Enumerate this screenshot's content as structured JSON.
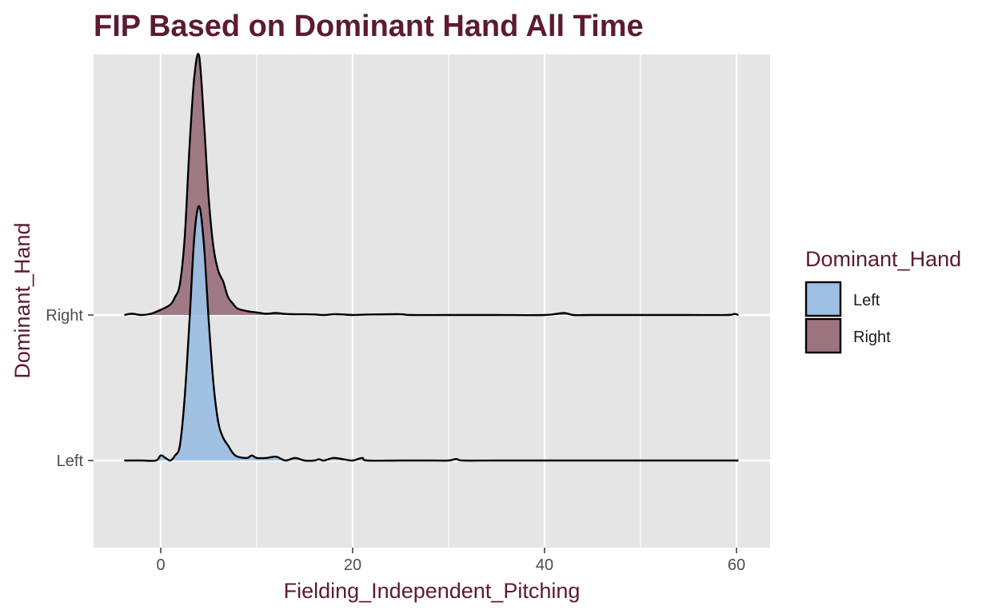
{
  "colors": {
    "title": "#5c1a33",
    "panel_bg": "#e5e5e5",
    "grid": "#ffffff",
    "left_fill": "#9dbfe1",
    "right_fill": "#9b7480",
    "outline": "#000000"
  },
  "chart_data": {
    "type": "area",
    "subtype": "ridgeline-density",
    "title": "FIP Based on Dominant Hand All Time",
    "xlabel": "Fielding_Independent_Pitching",
    "ylabel": "Dominant_Hand",
    "xlim": [
      -7,
      63.5
    ],
    "x_ticks": [
      0,
      20,
      40,
      60
    ],
    "x_tick_labels": [
      "0",
      "20",
      "40",
      "60"
    ],
    "categories": [
      "Left",
      "Right"
    ],
    "grid": true,
    "legend": {
      "title": "Dominant_Hand",
      "position": "right",
      "entries": [
        "Left",
        "Right"
      ]
    },
    "series": [
      {
        "name": "Left",
        "points": [
          [
            -3.8,
            0
          ],
          [
            -2,
            0
          ],
          [
            -0.5,
            0
          ],
          [
            0,
            0.02
          ],
          [
            0.5,
            0.01
          ],
          [
            1,
            0
          ],
          [
            1.5,
            0.02
          ],
          [
            2,
            0.06
          ],
          [
            2.5,
            0.25
          ],
          [
            3,
            0.55
          ],
          [
            3.5,
            0.88
          ],
          [
            4,
            1
          ],
          [
            4.5,
            0.85
          ],
          [
            5,
            0.55
          ],
          [
            5.5,
            0.3
          ],
          [
            6,
            0.15
          ],
          [
            6.5,
            0.09
          ],
          [
            7,
            0.06
          ],
          [
            7.5,
            0.03
          ],
          [
            8,
            0.015
          ],
          [
            9,
            0.01
          ],
          [
            9.5,
            0.02
          ],
          [
            10,
            0.01
          ],
          [
            11,
            0.01
          ],
          [
            12,
            0.015
          ],
          [
            13,
            0
          ],
          [
            14,
            0.01
          ],
          [
            15,
            0
          ],
          [
            16,
            0
          ],
          [
            16.5,
            0.005
          ],
          [
            17,
            0
          ],
          [
            18,
            0.01
          ],
          [
            19,
            0.005
          ],
          [
            20,
            0
          ],
          [
            21,
            0.01
          ],
          [
            21.5,
            0
          ],
          [
            25,
            0
          ],
          [
            28,
            0
          ],
          [
            30,
            0
          ],
          [
            30.8,
            0.006
          ],
          [
            31.5,
            0
          ],
          [
            35,
            0
          ],
          [
            40,
            0
          ],
          [
            45,
            0
          ],
          [
            50,
            0
          ],
          [
            55,
            0
          ],
          [
            60.2,
            0
          ]
        ]
      },
      {
        "name": "Right",
        "points": [
          [
            -3.8,
            0
          ],
          [
            -3,
            0.005
          ],
          [
            -2,
            0
          ],
          [
            -1,
            0.005
          ],
          [
            0,
            0.02
          ],
          [
            1,
            0.04
          ],
          [
            1.5,
            0.07
          ],
          [
            2,
            0.12
          ],
          [
            2.5,
            0.3
          ],
          [
            3,
            0.65
          ],
          [
            3.5,
            0.92
          ],
          [
            4,
            1
          ],
          [
            4.5,
            0.75
          ],
          [
            5,
            0.45
          ],
          [
            5.5,
            0.26
          ],
          [
            6,
            0.17
          ],
          [
            6.5,
            0.13
          ],
          [
            7,
            0.07
          ],
          [
            7.5,
            0.045
          ],
          [
            8,
            0.025
          ],
          [
            9,
            0.015
          ],
          [
            10,
            0.01
          ],
          [
            11,
            0.005
          ],
          [
            12,
            0.008
          ],
          [
            13,
            0.004
          ],
          [
            14,
            0.003
          ],
          [
            15,
            0.003
          ],
          [
            16,
            0.002
          ],
          [
            17,
            0
          ],
          [
            18,
            0.003
          ],
          [
            19,
            0.002
          ],
          [
            20,
            0
          ],
          [
            22,
            0.002
          ],
          [
            25,
            0.003
          ],
          [
            26,
            0
          ],
          [
            30,
            0
          ],
          [
            35,
            0
          ],
          [
            40,
            0
          ],
          [
            42,
            0.008
          ],
          [
            43,
            0
          ],
          [
            45,
            0
          ],
          [
            50,
            0
          ],
          [
            55,
            0
          ],
          [
            59,
            0
          ],
          [
            59.8,
            0.004
          ],
          [
            60.2,
            0
          ]
        ]
      }
    ]
  }
}
